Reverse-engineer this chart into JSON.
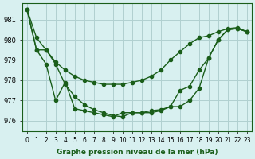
{
  "title": "Graphe pression niveau de la mer (hPa)",
  "bg_color": "#d8f0f0",
  "grid_color": "#b0d0d0",
  "line_color": "#1a5e1a",
  "x_labels": [
    "0",
    "1",
    "2",
    "3",
    "4",
    "5",
    "6",
    "7",
    "8",
    "9",
    "10",
    "11",
    "12",
    "13",
    "14",
    "15",
    "16",
    "17",
    "18",
    "19",
    "20",
    "21",
    "22",
    "23"
  ],
  "line1": [
    981.5,
    980.1,
    979.5,
    978.9,
    978.5,
    978.2,
    978.0,
    977.9,
    977.8,
    977.8,
    977.8,
    977.9,
    978.0,
    978.2,
    978.5,
    979.0,
    979.4,
    979.8,
    980.1,
    980.2,
    980.4,
    980.55,
    980.6,
    980.4
  ],
  "line2": [
    981.5,
    979.5,
    978.8,
    977.0,
    977.9,
    976.6,
    976.5,
    976.4,
    976.3,
    976.2,
    976.4,
    976.4,
    976.4,
    976.5,
    976.55,
    976.7,
    977.5,
    977.7,
    978.5,
    979.1,
    980.0,
    980.5,
    980.55,
    980.4
  ],
  "line3": [
    981.5,
    979.5,
    979.5,
    978.8,
    977.8,
    977.2,
    976.8,
    976.55,
    976.4,
    976.25,
    976.2,
    976.4,
    976.4,
    976.4,
    976.5,
    976.7,
    976.7,
    977.0,
    977.6,
    979.1,
    980.0,
    980.5,
    980.55,
    980.4
  ],
  "ylim": [
    975.5,
    981.8
  ],
  "yticks": [
    976,
    977,
    978,
    979,
    980,
    981
  ]
}
